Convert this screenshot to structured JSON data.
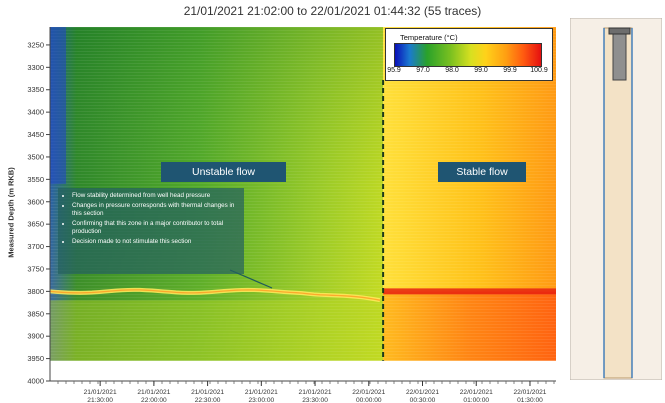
{
  "title": "21/01/2021 21:02:00 to 22/01/2021 01:44:32 (55 traces)",
  "chart_data": {
    "type": "heatmap",
    "title": "21/01/2021 21:02:00 to 22/01/2021 01:44:32 (55 traces)",
    "ylabel": "Measured Depth (m RKB)",
    "xlabel": "",
    "ylim": [
      3210,
      4000
    ],
    "y_inverted": true,
    "y_ticks": [
      3250,
      3300,
      3350,
      3400,
      3450,
      3500,
      3550,
      3600,
      3650,
      3700,
      3750,
      3800,
      3850,
      3900,
      3950,
      4000
    ],
    "x_ticks": [
      {
        "date": "21/01/2021",
        "time": "21:30:00"
      },
      {
        "date": "21/01/2021",
        "time": "22:00:00"
      },
      {
        "date": "21/01/2021",
        "time": "22:30:00"
      },
      {
        "date": "21/01/2021",
        "time": "23:00:00"
      },
      {
        "date": "21/01/2021",
        "time": "23:30:00"
      },
      {
        "date": "22/01/2021",
        "time": "00:00:00"
      },
      {
        "date": "22/01/2021",
        "time": "00:30:00"
      },
      {
        "date": "22/01/2021",
        "time": "01:00:00"
      },
      {
        "date": "22/01/2021",
        "time": "01:30:00"
      }
    ],
    "x_range": [
      "21/01/2021 21:02:00",
      "22/01/2021 01:44:32"
    ],
    "colorbar": {
      "title": "Temperature (°C)",
      "min": 95.9,
      "max": 100.9,
      "ticks": [
        "95.9",
        "97.0",
        "98.0",
        "99.0",
        "99.9",
        "100.9"
      ],
      "colors": [
        "#0a10b8",
        "#2aa12a",
        "#d8e020",
        "#ffd21a",
        "#ff9f12",
        "#e51010"
      ]
    },
    "divider_time": "22/01/2021 00:08:00",
    "zones": [
      {
        "from": "21/01/2021 21:02:00",
        "to": "22/01/2021 00:08:00",
        "temp_range": [
          96.5,
          98.5
        ]
      },
      {
        "from": "22/01/2021 00:08:00",
        "to": "22/01/2021 01:44:32",
        "temp_range": [
          99.0,
          100.5
        ]
      }
    ],
    "hot_band_depth": 3800,
    "annotations": {
      "unstable": "Unstable flow",
      "stable": "Stable flow",
      "notes": [
        "Flow stability determined  from well head pressure",
        "Changes in pressure corresponds with thermal changes in this section",
        "Confirming that this zone in a major contributor to total production",
        "Decision made to not stimulate this section"
      ]
    }
  }
}
